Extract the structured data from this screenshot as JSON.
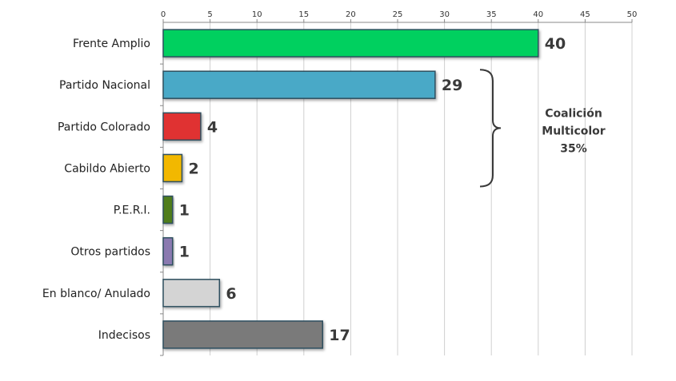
{
  "chart_data": {
    "type": "bar",
    "orientation": "horizontal",
    "categories": [
      "Frente Amplio",
      "Partido Nacional",
      "Partido Colorado",
      "Cabildo Abierto",
      "P.E.R.I.",
      "Otros partidos",
      "En blanco/ Anulado",
      "Indecisos"
    ],
    "values": [
      40,
      29,
      4,
      2,
      1,
      1,
      6,
      17
    ],
    "colors": [
      "#00d05e",
      "#4aa9c7",
      "#e03030",
      "#f2b800",
      "#4f7d1e",
      "#8a7ab0",
      "#d4d4d4",
      "#7a7a7a"
    ],
    "xlim": [
      0,
      50
    ],
    "xticks": [
      "0",
      "5",
      "10",
      "15",
      "20",
      "25",
      "30",
      "35",
      "40",
      "45",
      "50"
    ],
    "x_axis_position": "top",
    "grid": true,
    "legend": "none",
    "value_labels": [
      "40",
      "29",
      "4",
      "2",
      "1",
      "1",
      "6",
      "17"
    ],
    "annotation": {
      "type": "brace",
      "covers": [
        "Partido Nacional",
        "Partido Colorado",
        "Cabildo Abierto"
      ],
      "lines": [
        "Coalición",
        "Multicolor",
        "35%"
      ]
    }
  }
}
